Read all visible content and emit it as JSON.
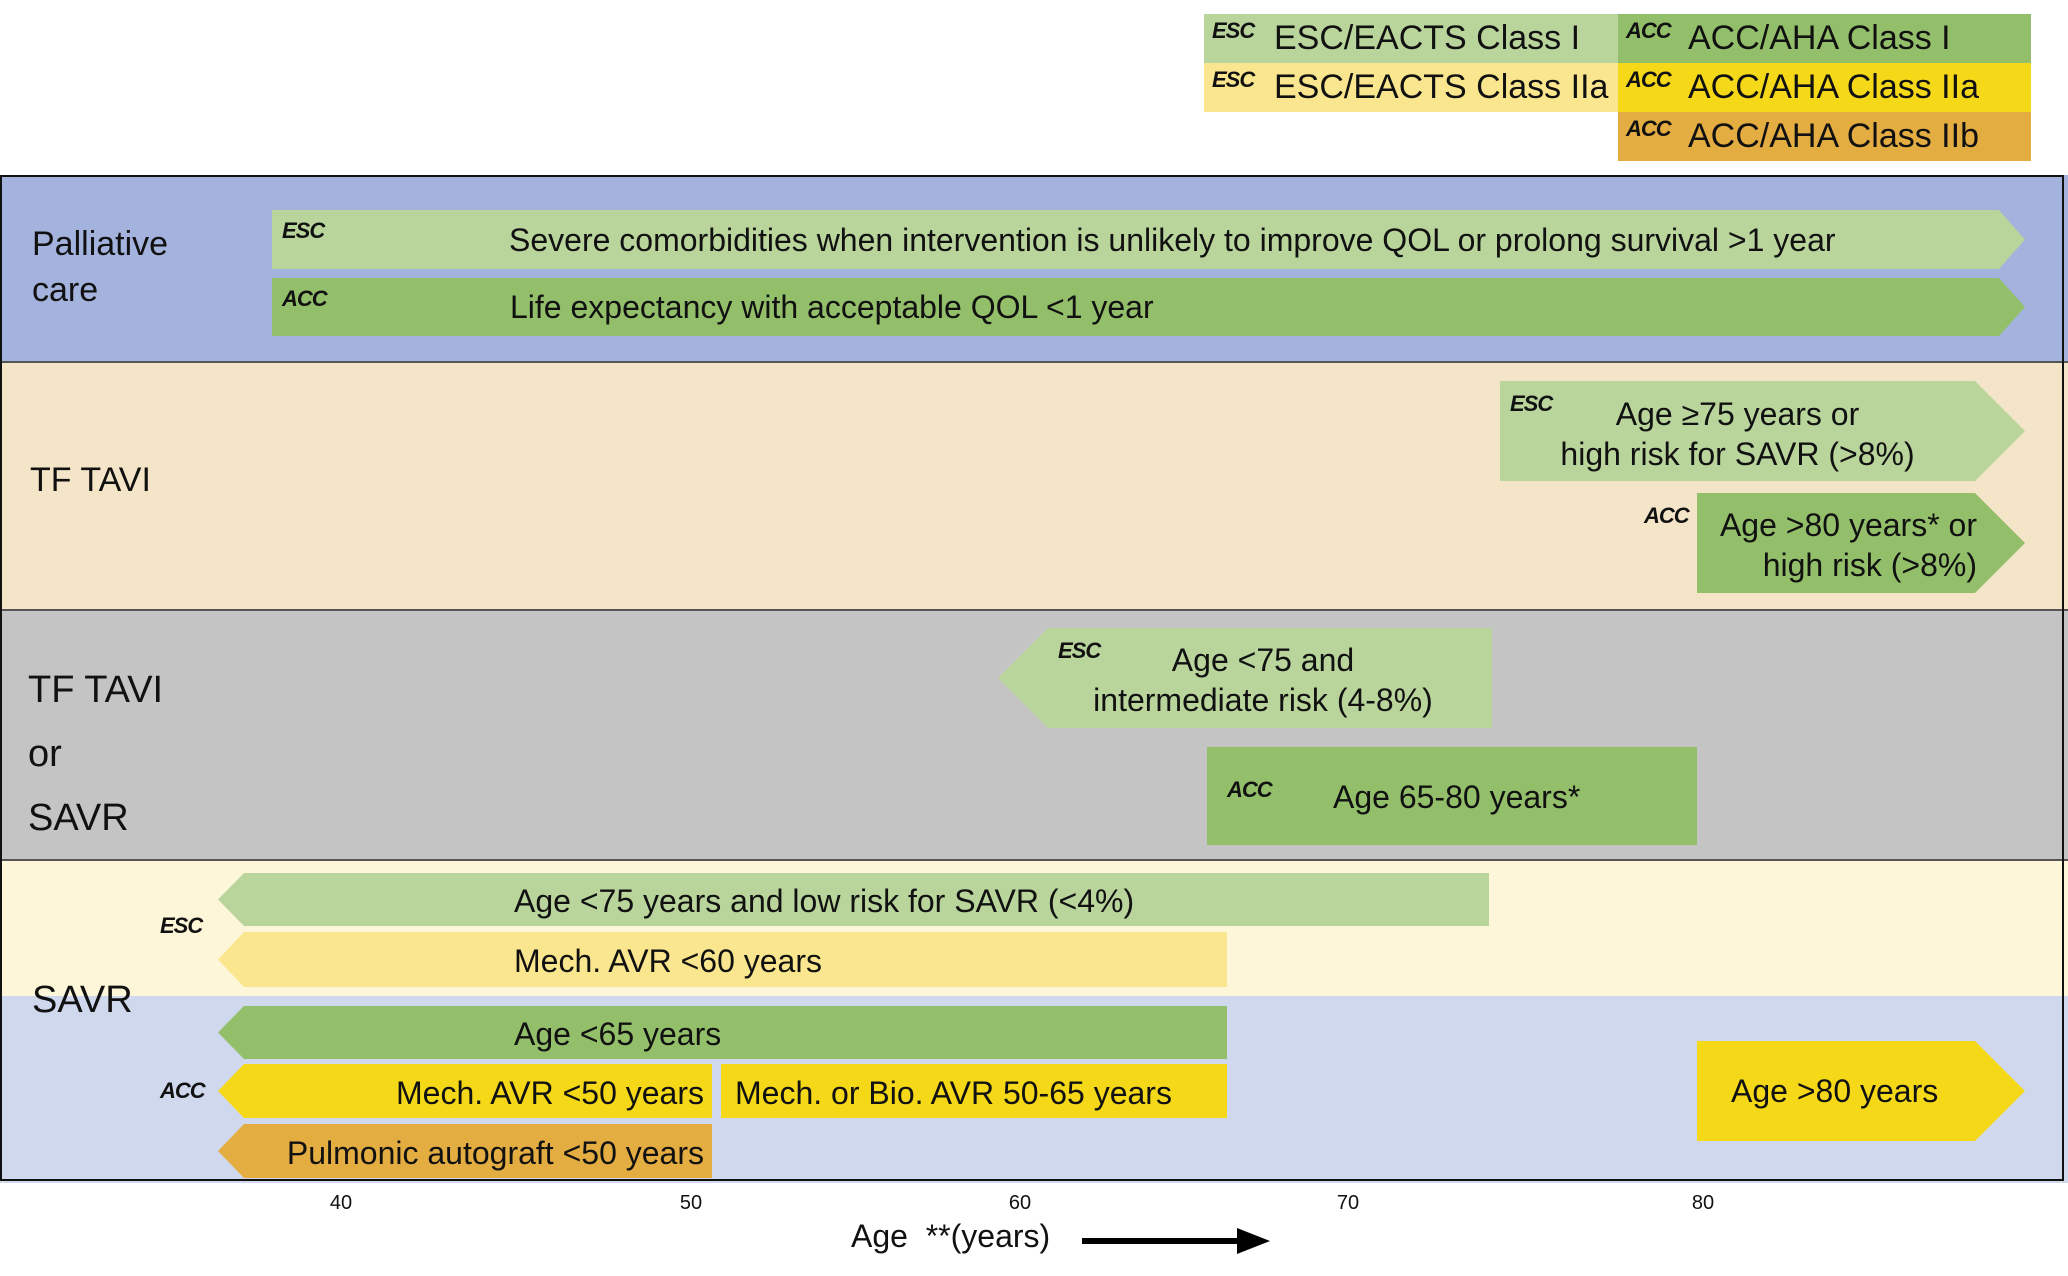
{
  "legend": {
    "esc_tag": "ESC",
    "acc_tag": "ACC",
    "items": [
      {
        "label": "ESC/EACTS Class I",
        "color": "#b9d59c"
      },
      {
        "label": "ESC/EACTS Class IIa",
        "color": "#fae68e"
      },
      {
        "label": "ACC/AHA Class I",
        "color": "#93bf6a"
      },
      {
        "label": "ACC/AHA Class IIa",
        "color": "#f5d818"
      },
      {
        "label": "ACC/AHA Class IIb",
        "color": "#e4ad42"
      }
    ]
  },
  "rows": {
    "palliative": {
      "label1": "Palliative",
      "label2": "care",
      "esc": "Severe comorbidities when intervention is unlikely to improve QOL or prolong survival >1 year",
      "acc": "Life expectancy with acceptable QOL <1 year"
    },
    "tftavi": {
      "label": "TF TAVI",
      "esc1": "Age ≥75 years or",
      "esc2": "high risk for SAVR (>8%)",
      "acc1": "Age >80 years* or",
      "acc2": "high risk (>8%)"
    },
    "either": {
      "label1": "TF TAVI",
      "label2": "or",
      "label3": "SAVR",
      "esc1": "Age <75 and",
      "esc2": "intermediate risk (4-8%)",
      "acc": "Age 65-80 years*"
    },
    "savr": {
      "label": "SAVR",
      "esc_a": "Age <75 years and low risk for SAVR (<4%)",
      "esc_b": "Mech. AVR <60 years",
      "acc_a": "Age <65 years",
      "acc_b": "Mech. AVR <50 years",
      "acc_c": "Mech. or Bio. AVR 50-65 years",
      "acc_d": "Pulmonic autograft <50 years",
      "acc_e": "Age >80 years"
    }
  },
  "axis": {
    "ticks": [
      "40",
      "50",
      "60",
      "70",
      "80"
    ],
    "label": "Age  **(years)"
  },
  "colors": {
    "palliative_bg": "#a4b2de",
    "tftavi_bg": "#f5e5c8",
    "either_bg": "#c4c4c4",
    "savr_esc_bg": "#fdf6d8",
    "savr_acc_bg": "#d0d8ee"
  }
}
